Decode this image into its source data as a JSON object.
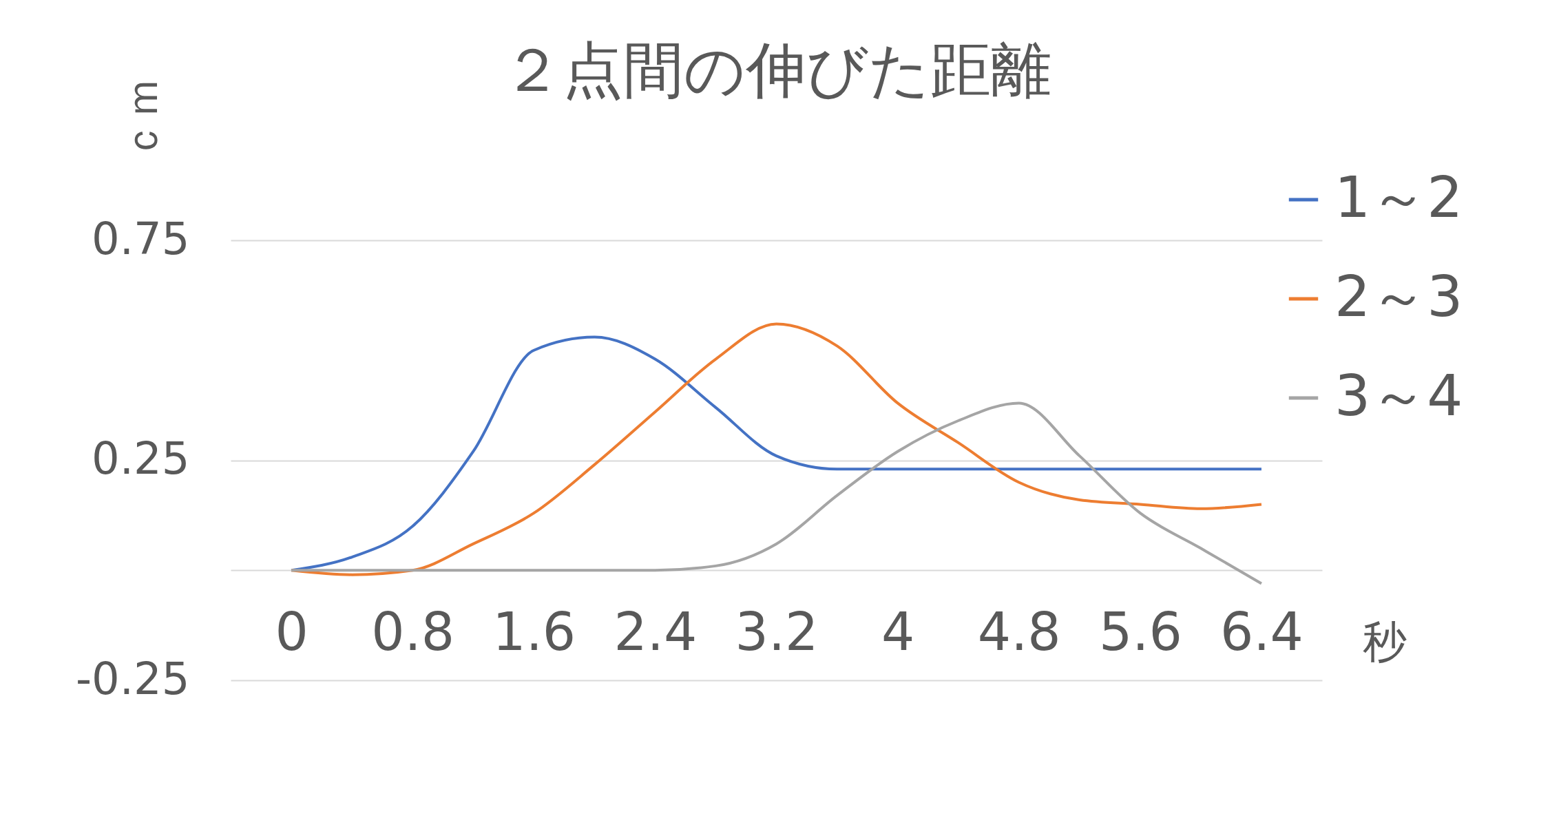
{
  "chart_data": {
    "type": "line",
    "title": "２点間の伸びた距離",
    "ylabel": "ｃｍ",
    "xlabel": "秒",
    "categories": [
      "0",
      null,
      "0.8",
      null,
      "1.6",
      null,
      "2.4",
      null,
      "3.2",
      null,
      "4",
      null,
      "4.8",
      null,
      "5.6",
      null,
      "6.4"
    ],
    "series": [
      {
        "name": "1～2",
        "color": "#4472c4",
        "values": [
          0,
          0.03,
          0.1,
          0.27,
          0.5,
          0.53,
          0.48,
          0.37,
          0.26,
          0.23,
          0.23,
          0.23,
          0.23,
          0.23,
          0.23,
          0.23,
          0.23
        ]
      },
      {
        "name": "2～3",
        "color": "#ed7d31",
        "values": [
          0,
          -0.01,
          0,
          0.06,
          0.13,
          0.24,
          0.36,
          0.48,
          0.56,
          0.51,
          0.38,
          0.29,
          0.2,
          0.16,
          0.15,
          0.14,
          0.15
        ]
      },
      {
        "name": "3～4",
        "color": "#a5a5a5",
        "values": [
          0,
          0,
          0,
          0,
          0,
          0,
          0,
          0.01,
          0.06,
          0.17,
          0.27,
          0.34,
          0.38,
          0.26,
          0.13,
          0.05,
          -0.03
        ]
      }
    ],
    "ylim": [
      -0.25,
      0.75
    ],
    "yticks": [
      -0.25,
      {
        "value": 0,
        "label": null
      },
      0.25,
      0.75
    ],
    "grid": "y",
    "legend": "right",
    "marker": "none",
    "line_style": "solid"
  }
}
